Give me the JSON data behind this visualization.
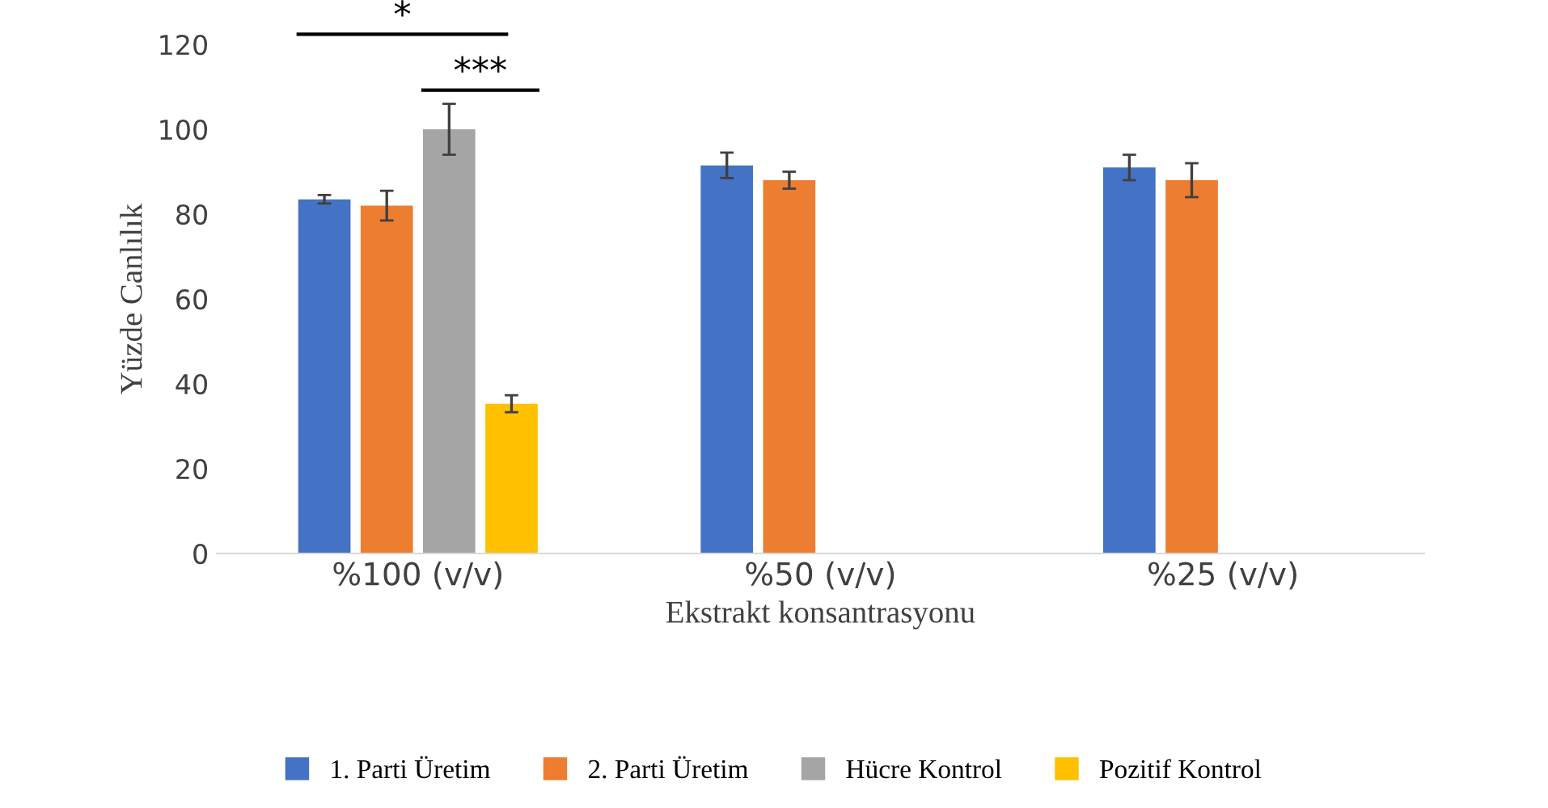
{
  "chart_data": {
    "type": "bar",
    "xlabel": "Ekstrakt konsantrasyonu",
    "ylabel": "Yüzde Canlılık",
    "categories": [
      "%100 (v/v)",
      "%50 (v/v)",
      "%25 (v/v)"
    ],
    "series": [
      {
        "name": "1. Parti Üretim",
        "color": "#4472c4",
        "values": [
          83.5,
          91.5,
          91
        ],
        "errors": [
          1,
          3,
          3
        ]
      },
      {
        "name": "2. Parti Üretim",
        "color": "#ed7d31",
        "values": [
          82,
          88,
          88
        ],
        "errors": [
          3.5,
          2,
          4
        ]
      },
      {
        "name": "Hücre Kontrol",
        "color": "#a5a5a5",
        "values": [
          100,
          null,
          null
        ],
        "errors": [
          6,
          null,
          null
        ]
      },
      {
        "name": "Pozitif Kontrol",
        "color": "#ffc000",
        "values": [
          35.3,
          null,
          null
        ],
        "errors": [
          2,
          null,
          null
        ]
      }
    ],
    "ylim": [
      0,
      120
    ],
    "yticks": [
      0,
      20,
      40,
      60,
      80,
      100,
      120
    ],
    "grid": false,
    "legend": "bottom",
    "annotations": [
      "*",
      "***"
    ]
  }
}
